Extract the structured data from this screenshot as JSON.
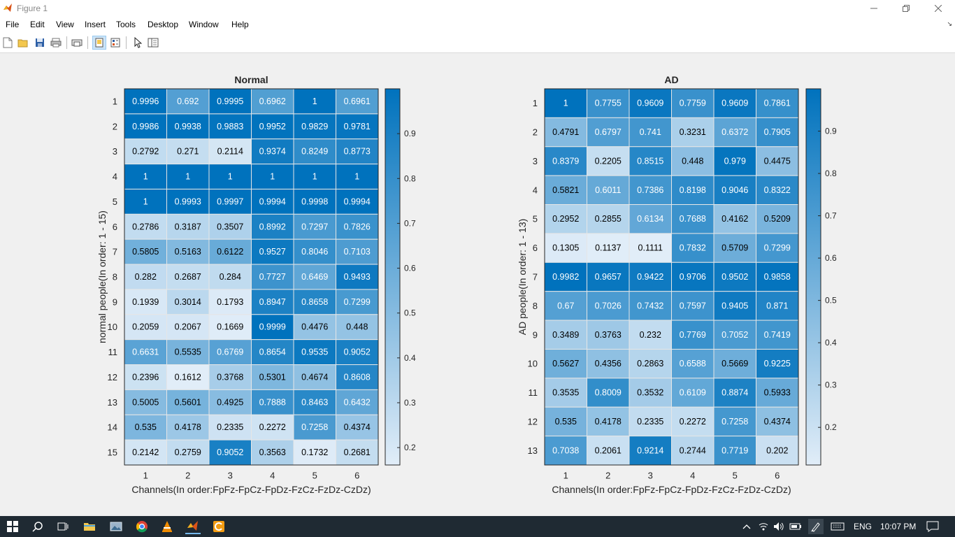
{
  "window": {
    "title": "Figure 1"
  },
  "menu": [
    "File",
    "Edit",
    "View",
    "Insert",
    "Tools",
    "Desktop",
    "Window",
    "Help"
  ],
  "toolbar_icons": [
    "new-figure-icon",
    "open-file-icon",
    "save-icon",
    "print-icon",
    "print-preview-icon",
    "plot-edit-icon",
    "dock-icon",
    "pointer-icon",
    "property-editor-icon"
  ],
  "colors": {
    "cmap_low": "#e1edf8",
    "cmap_high": "#0072bd",
    "text_dark": "#000000",
    "text_light": "#ffffff"
  },
  "chart_data": [
    {
      "type": "heatmap",
      "title": "Normal",
      "xlabel": "Channels(In order:FpFz-FpCz-FpDz-FzCz-FzDz-CzDz)",
      "ylabel": "normal people(In order: 1 - 15)",
      "x": [
        "1",
        "2",
        "3",
        "4",
        "5",
        "6"
      ],
      "y": [
        "1",
        "2",
        "3",
        "4",
        "5",
        "6",
        "7",
        "8",
        "9",
        "10",
        "11",
        "12",
        "13",
        "14",
        "15"
      ],
      "cell_labels": [
        [
          "0.9996",
          "0.692",
          "0.9995",
          "0.6962",
          "1",
          "0.6961"
        ],
        [
          "0.9986",
          "0.9938",
          "0.9883",
          "0.9952",
          "0.9829",
          "0.9781"
        ],
        [
          "0.2792",
          "0.271",
          "0.2114",
          "0.9374",
          "0.8249",
          "0.8773"
        ],
        [
          "1",
          "1",
          "1",
          "1",
          "1",
          "1"
        ],
        [
          "1",
          "0.9993",
          "0.9997",
          "0.9994",
          "0.9998",
          "0.9994"
        ],
        [
          "0.2786",
          "0.3187",
          "0.3507",
          "0.8992",
          "0.7297",
          "0.7826"
        ],
        [
          "0.5805",
          "0.5163",
          "0.6122",
          "0.9527",
          "0.8046",
          "0.7103"
        ],
        [
          "0.282",
          "0.2687",
          "0.284",
          "0.7727",
          "0.6469",
          "0.9493"
        ],
        [
          "0.1939",
          "0.3014",
          "0.1793",
          "0.8947",
          "0.8658",
          "0.7299"
        ],
        [
          "0.2059",
          "0.2067",
          "0.1669",
          "0.9999",
          "0.4476",
          "0.448"
        ],
        [
          "0.6631",
          "0.5535",
          "0.6769",
          "0.8654",
          "0.9535",
          "0.9052"
        ],
        [
          "0.2396",
          "0.1612",
          "0.3768",
          "0.5301",
          "0.4674",
          "0.8608"
        ],
        [
          "0.5005",
          "0.5601",
          "0.4925",
          "0.7888",
          "0.8463",
          "0.6432"
        ],
        [
          "0.535",
          "0.4178",
          "0.2335",
          "0.2272",
          "0.7258",
          "0.4374"
        ],
        [
          "0.2142",
          "0.2759",
          "0.9052",
          "0.3563",
          "0.1732",
          "0.2681"
        ]
      ],
      "colorbar": {
        "range": [
          0.1612,
          1
        ],
        "ticks": [
          "0.9",
          "0.8",
          "0.7",
          "0.6",
          "0.5",
          "0.4",
          "0.3",
          "0.2"
        ]
      }
    },
    {
      "type": "heatmap",
      "title": "AD",
      "xlabel": "Channels(In order:FpFz-FpCz-FpDz-FzCz-FzDz-CzDz)",
      "ylabel": "AD people(In order: 1 - 13)",
      "x": [
        "1",
        "2",
        "3",
        "4",
        "5",
        "6"
      ],
      "y": [
        "1",
        "2",
        "3",
        "4",
        "5",
        "6",
        "7",
        "8",
        "9",
        "10",
        "11",
        "12",
        "13"
      ],
      "cell_labels": [
        [
          "1",
          "0.7755",
          "0.9609",
          "0.7759",
          "0.9609",
          "0.7861"
        ],
        [
          "0.4791",
          "0.6797",
          "0.741",
          "0.3231",
          "0.6372",
          "0.7905"
        ],
        [
          "0.8379",
          "0.2205",
          "0.8515",
          "0.448",
          "0.979",
          "0.4475"
        ],
        [
          "0.5821",
          "0.6011",
          "0.7386",
          "0.8198",
          "0.9046",
          "0.8322"
        ],
        [
          "0.2952",
          "0.2855",
          "0.6134",
          "0.7688",
          "0.4162",
          "0.5209"
        ],
        [
          "0.1305",
          "0.1137",
          "0.1111",
          "0.7832",
          "0.5709",
          "0.7299"
        ],
        [
          "0.9982",
          "0.9657",
          "0.9422",
          "0.9706",
          "0.9502",
          "0.9858"
        ],
        [
          "0.67",
          "0.7026",
          "0.7432",
          "0.7597",
          "0.9405",
          "0.871"
        ],
        [
          "0.3489",
          "0.3763",
          "0.232",
          "0.7769",
          "0.7052",
          "0.7419"
        ],
        [
          "0.5627",
          "0.4356",
          "0.2863",
          "0.6588",
          "0.5669",
          "0.9225"
        ],
        [
          "0.3535",
          "0.8009",
          "0.3532",
          "0.6109",
          "0.8874",
          "0.5933"
        ],
        [
          "0.535",
          "0.4178",
          "0.2335",
          "0.2272",
          "0.7258",
          "0.4374"
        ],
        [
          "0.7038",
          "0.2061",
          "0.9214",
          "0.2744",
          "0.7719",
          "0.202"
        ]
      ],
      "colorbar": {
        "range": [
          0.1111,
          1
        ],
        "ticks": [
          "0.9",
          "0.8",
          "0.7",
          "0.6",
          "0.5",
          "0.4",
          "0.3",
          "0.2"
        ]
      }
    }
  ],
  "taskbar": {
    "apps": [
      "start-icon",
      "search-icon",
      "task-view-icon",
      "file-explorer-icon",
      "photos-icon",
      "chrome-icon",
      "vlc-icon",
      "matlab-icon",
      "app-icon"
    ],
    "language": "ENG",
    "time": "10:07 PM"
  }
}
